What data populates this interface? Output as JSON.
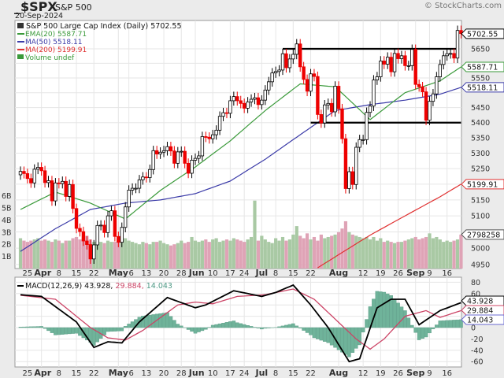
{
  "header": {
    "symbol": "_$SPX",
    "name": "S&P 500",
    "date": "20-Sep-2024",
    "copyright": "© StockCharts.com"
  },
  "legend": {
    "main": "S&P 500 Large Cap Index (Daily) 5702.55",
    "ema": "EMA(20) 5587.71",
    "ma50": "MA(50) 5518.11",
    "ma200": "MA(200) 5199.91",
    "volume": "Volume undef",
    "macd_label": "MACD(12,26,9) 43.928,",
    "macd_signal": " 29.884,",
    "macd_hist": " 14.043"
  },
  "tags": {
    "price": "5702.55",
    "ema": "5587.71",
    "ma50": "5518.11",
    "ma200": "5199.91",
    "volume": "2798258",
    "macd": "43.928",
    "signal": "29.884",
    "hist": "14.043"
  },
  "colors": {
    "up": "#000000",
    "down": "#ee0000",
    "ema": "#3a9a3a",
    "ma50": "#3b3ba8",
    "ma200": "#e03030",
    "vol_up": "#a9c9a4",
    "vol_down": "#dfa3b6",
    "macd": "#000000",
    "signal": "#cc4466",
    "hist": "#6fb39a"
  },
  "chart_data": [
    {
      "type": "candlestick",
      "title": "S&P 500 Large Cap Index (Daily)",
      "scale": "log",
      "ylim": [
        4930,
        5730
      ],
      "yticks": [
        4950,
        5000,
        5050,
        5100,
        5150,
        5200,
        5250,
        5300,
        5350,
        5400,
        5450,
        5500,
        5550,
        5600,
        5650
      ],
      "yticks_hidden": [
        5050,
        5200,
        5500,
        5600
      ],
      "date_ticks": [
        {
          "i": 2,
          "label": "25"
        },
        {
          "i": 6,
          "label": "Apr",
          "bold": true
        },
        {
          "i": 11,
          "label": "8"
        },
        {
          "i": 16,
          "label": "15"
        },
        {
          "i": 21,
          "label": "22"
        },
        {
          "i": 28,
          "label": "May",
          "bold": true
        },
        {
          "i": 31,
          "label": "6"
        },
        {
          "i": 36,
          "label": "13"
        },
        {
          "i": 41,
          "label": "20"
        },
        {
          "i": 46,
          "label": "28"
        },
        {
          "i": 50,
          "label": "Jun",
          "bold": true
        },
        {
          "i": 55,
          "label": "10"
        },
        {
          "i": 60,
          "label": "17"
        },
        {
          "i": 64,
          "label": "24"
        },
        {
          "i": 69,
          "label": "Jul",
          "bold": true
        },
        {
          "i": 73,
          "label": "8"
        },
        {
          "i": 78,
          "label": "15"
        },
        {
          "i": 83,
          "label": "22"
        },
        {
          "i": 91,
          "label": "Aug",
          "bold": true
        },
        {
          "i": 98,
          "label": "12"
        },
        {
          "i": 103,
          "label": "19"
        },
        {
          "i": 108,
          "label": "26"
        },
        {
          "i": 113,
          "label": "Sep",
          "bold": true
        },
        {
          "i": 117,
          "label": "9"
        },
        {
          "i": 122,
          "label": "16"
        }
      ],
      "first_open": 5230,
      "close": [
        5241,
        5234,
        5218,
        5204,
        5248,
        5254,
        5243,
        5205,
        5211,
        5147,
        5204,
        5202,
        5209,
        5161,
        5199,
        5123,
        5061,
        5051,
        5022,
        5011,
        4967,
        5010,
        5070,
        5071,
        5048,
        5100,
        5116,
        5036,
        5018,
        5064,
        5128,
        5181,
        5187,
        5187,
        5214,
        5223,
        5221,
        5247,
        5308,
        5297,
        5303,
        5308,
        5321,
        5307,
        5267,
        5304,
        5306,
        5267,
        5235,
        5277,
        5283,
        5291,
        5354,
        5352,
        5347,
        5360,
        5375,
        5421,
        5433,
        5431,
        5473,
        5487,
        5473,
        5464,
        5448,
        5469,
        5478,
        5483,
        5460,
        5475,
        5509,
        5537,
        5567,
        5572,
        5577,
        5633,
        5585,
        5615,
        5631,
        5667,
        5588,
        5545,
        5505,
        5564,
        5555,
        5427,
        5399,
        5459,
        5464,
        5436,
        5522,
        5446,
        5347,
        5186,
        5240,
        5199,
        5319,
        5344,
        5344,
        5434,
        5455,
        5543,
        5554,
        5608,
        5597,
        5621,
        5571,
        5634,
        5616,
        5626,
        5592,
        5592,
        5648,
        5528,
        5520,
        5503,
        5408,
        5471,
        5496,
        5554,
        5596,
        5626,
        5633,
        5634,
        5618,
        5714,
        5703
      ],
      "ema20": {
        "i": [
          0,
          10,
          20,
          30,
          40,
          50,
          60,
          70,
          80,
          90,
          100,
          110,
          120,
          126
        ],
        "v": [
          5120,
          5175,
          5140,
          5090,
          5180,
          5255,
          5340,
          5440,
          5530,
          5520,
          5410,
          5500,
          5540,
          5587.71
        ]
      },
      "ma50": {
        "i": [
          0,
          10,
          20,
          30,
          40,
          50,
          60,
          70,
          80,
          90,
          100,
          110,
          120,
          126
        ],
        "v": [
          4990,
          5060,
          5120,
          5140,
          5150,
          5170,
          5210,
          5280,
          5360,
          5440,
          5460,
          5475,
          5495,
          5518.11
        ]
      },
      "ma200": {
        "i": [
          85,
          100,
          110,
          120,
          126
        ],
        "v": [
          4940,
          5040,
          5100,
          5160,
          5199.91
        ]
      },
      "trendlines": [
        {
          "value": 5650,
          "from": 75,
          "to": 125
        },
        {
          "value": 5400,
          "from": 83,
          "to": 126
        }
      ],
      "volume_unit": "B",
      "volume_ticks": [
        1,
        2,
        3,
        4,
        5,
        6
      ],
      "volume": [
        2.5,
        2.3,
        2.2,
        2.3,
        2.4,
        2.5,
        2.3,
        2.4,
        2.3,
        2.2,
        2.4,
        2.3,
        2.1,
        2.3,
        2.3,
        2.5,
        2.6,
        2.4,
        2.5,
        2.7,
        2.4,
        2.2,
        2.3,
        2.2,
        2.1,
        2.3,
        2.2,
        2.2,
        2.4,
        2.6,
        2.5,
        2.3,
        2.2,
        2.1,
        2.0,
        2.2,
        2.1,
        2.0,
        2.2,
        2.2,
        2.3,
        2.1,
        2.0,
        1.9,
        2.0,
        2.1,
        2.3,
        2.1,
        2.2,
        2.6,
        2.3,
        2.2,
        2.3,
        2.4,
        2.2,
        2.4,
        2.5,
        2.2,
        2.3,
        2.4,
        2.3,
        2.5,
        2.4,
        2.3,
        2.2,
        2.4,
        2.6,
        5.6,
        2.3,
        2.7,
        2.4,
        2.2,
        2.1,
        2.5,
        2.3,
        2.6,
        2.3,
        2.4,
        2.8,
        3.5,
        2.7,
        2.5,
        2.9,
        2.4,
        2.6,
        2.3,
        2.8,
        2.5,
        2.6,
        2.7,
        2.8,
        3.0,
        3.3,
        3.9,
        3.0,
        2.8,
        2.7,
        2.6,
        2.5,
        2.6,
        2.4,
        2.6,
        2.3,
        2.5,
        2.2,
        2.3,
        2.2,
        2.1,
        2.2,
        2.2,
        2.3,
        2.4,
        2.5,
        2.6,
        2.4,
        2.5,
        2.6,
        2.9,
        2.5,
        2.6,
        2.4,
        2.2,
        2.3,
        2.2,
        2.3,
        2.4,
        2.8
      ]
    },
    {
      "type": "line",
      "title": "MACD(12,26,9)",
      "ylim": [
        -68,
        88
      ],
      "yticks": [
        -60,
        -40,
        -20,
        0,
        20,
        40,
        60,
        80
      ],
      "yticks_hidden": [
        20,
        40
      ],
      "macd": {
        "i": [
          0,
          6,
          16,
          21,
          25,
          29,
          34,
          42,
          50,
          53,
          61,
          69,
          73,
          78,
          83,
          88,
          94,
          97,
          102,
          106,
          110,
          114,
          120,
          126
        ],
        "v": [
          58,
          55,
          10,
          -35,
          -25,
          -27,
          10,
          53,
          35,
          40,
          65,
          55,
          62,
          75,
          40,
          0,
          -60,
          -55,
          35,
          50,
          50,
          5,
          30,
          43.928
        ]
      },
      "signal": {
        "i": [
          0,
          10,
          20,
          25,
          30,
          35,
          45,
          50,
          55,
          62,
          70,
          78,
          84,
          90,
          96,
          100,
          104,
          110,
          116,
          120,
          126
        ],
        "v": [
          57,
          50,
          0,
          -18,
          -22,
          -5,
          40,
          45,
          42,
          55,
          58,
          68,
          50,
          15,
          -20,
          -38,
          -20,
          20,
          30,
          18,
          29.884
        ]
      },
      "histogram": "macd minus signal"
    }
  ]
}
